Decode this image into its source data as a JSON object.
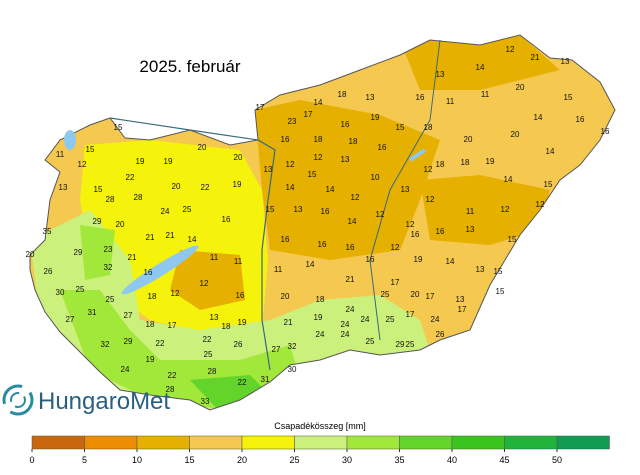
{
  "title": "2025. február",
  "logo": "HungaroMet",
  "legend": {
    "label": "Csapadékösszeg [mm]",
    "ticks": [
      0,
      5,
      10,
      15,
      20,
      25,
      30,
      35,
      40,
      45,
      50
    ],
    "colors": [
      "#c9670f",
      "#ec8c00",
      "#e6b000",
      "#f5c850",
      "#f5f20c",
      "#ccf07c",
      "#a2e83a",
      "#62d42a",
      "#3cc41e",
      "#22b43a",
      "#119a52"
    ]
  },
  "stations": [
    11,
    12,
    15,
    15,
    13,
    15,
    22,
    19,
    20,
    20,
    19,
    20,
    22,
    19,
    28,
    28,
    24,
    25,
    29,
    20,
    21,
    21,
    14,
    16,
    35,
    29,
    23,
    21,
    20,
    26,
    32,
    16,
    11,
    11,
    30,
    25,
    25,
    18,
    12,
    12,
    16,
    27,
    31,
    27,
    18,
    17,
    13,
    19,
    32,
    29,
    22,
    22,
    18,
    19,
    25,
    26,
    24,
    22,
    28,
    28,
    22,
    33,
    31,
    27,
    32,
    30,
    17,
    23,
    17,
    14,
    18,
    13,
    16,
    19,
    15,
    16,
    18,
    18,
    16,
    18,
    13,
    12,
    12,
    13,
    14,
    15,
    14,
    12,
    10,
    13,
    12,
    15,
    13,
    16,
    14,
    12,
    12,
    16,
    16,
    16,
    12,
    16,
    11,
    14,
    21,
    16,
    17,
    20,
    18,
    24,
    25,
    21,
    19,
    24,
    24,
    25,
    24,
    24,
    25,
    29,
    13,
    14,
    12,
    21,
    13,
    16,
    11,
    11,
    20,
    15,
    14,
    16,
    16,
    20,
    20,
    14,
    18,
    18,
    19,
    14,
    15,
    12,
    11,
    12,
    12,
    16,
    13,
    15,
    19,
    14,
    13,
    15,
    20,
    17,
    13,
    15,
    17,
    24,
    17,
    26,
    25
  ]
}
